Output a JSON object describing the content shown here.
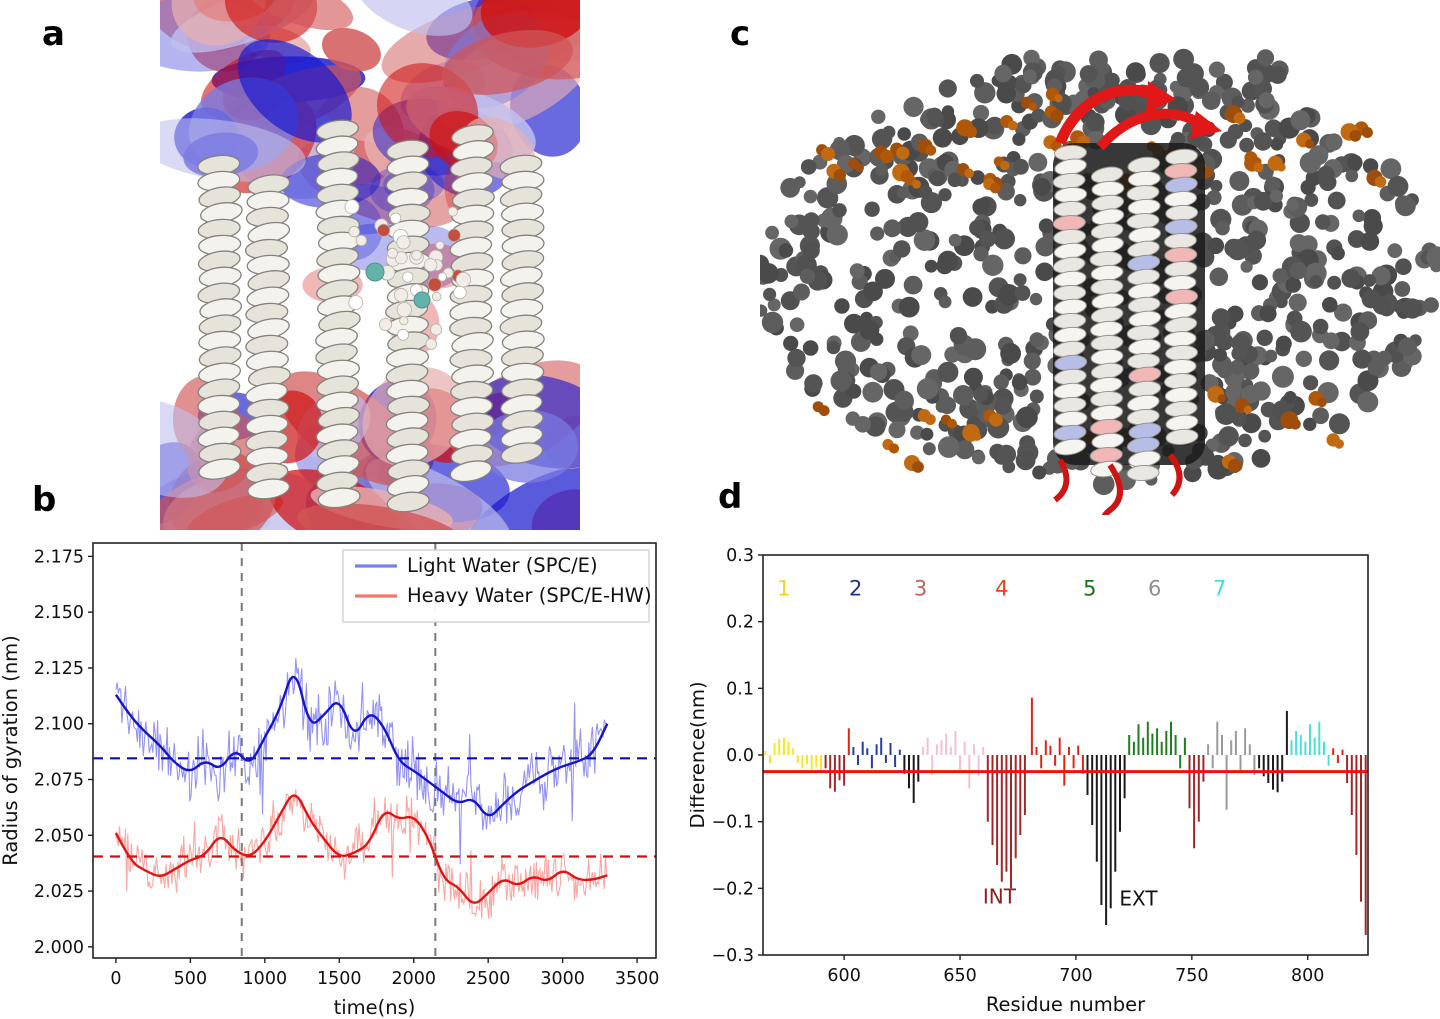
{
  "panels": {
    "a": {
      "label": "a",
      "type": "molecular-render",
      "colors": {
        "surface_blue": "#1b1bd0",
        "surface_red": "#cf1111",
        "helix_white": "#f2f0ea",
        "water_red": "#c24e3e",
        "ion_teal": "#63b3ab"
      }
    },
    "b": {
      "label": "b"
    },
    "c": {
      "label": "c",
      "type": "molecular-render",
      "colors": {
        "lipid_gray": "#565656",
        "headgroup_orange": "#b35d0e",
        "helix_white": "#f6f4f0",
        "loop_red": "#e01818",
        "tint_blue": "#b6bee8",
        "tint_pink": "#f1b6b6"
      }
    },
    "d": {
      "label": "d"
    }
  },
  "chart_data": [
    {
      "id": "b",
      "type": "line",
      "xlabel": "time(ns)",
      "ylabel": "Radius of gyration (nm)",
      "xlim": [
        -154,
        3627
      ],
      "ylim": [
        1.995,
        2.181
      ],
      "xtick_vals": [
        0,
        500,
        1000,
        1500,
        2000,
        2500,
        3000,
        3500
      ],
      "xtick_labels": [
        "0",
        "500",
        "1000",
        "1500",
        "2000",
        "2500",
        "3000",
        "3500"
      ],
      "ytick_vals": [
        2.0,
        2.025,
        2.05,
        2.075,
        2.1,
        2.125,
        2.15,
        2.175
      ],
      "ytick_labels": [
        "2.000",
        "2.025",
        "2.050",
        "2.075",
        "2.100",
        "2.125",
        "2.150",
        "2.175"
      ],
      "legend": [
        {
          "label": "Light Water (SPC/E)",
          "color": "#7d7df2"
        },
        {
          "label": "Heavy Water (SPC/E-HW)",
          "color": "#f0776d"
        }
      ],
      "hlines": [
        {
          "y": 2.0845,
          "color": "#0a0ac8"
        },
        {
          "y": 2.0405,
          "color": "#cc1111"
        }
      ],
      "vlines": [
        {
          "x": 845,
          "color": "#7a7a7a"
        },
        {
          "x": 2145,
          "color": "#7a7a7a"
        }
      ],
      "series": [
        {
          "name": "Light Water (SPC/E)",
          "smooth_color": "#1616c8",
          "band_color": "#7d7df2",
          "noise": 0.016,
          "seed": 11,
          "x": [
            0,
            100,
            200,
            300,
            400,
            500,
            600,
            700,
            800,
            900,
            1000,
            1100,
            1200,
            1300,
            1400,
            1500,
            1600,
            1700,
            1800,
            1900,
            2000,
            2100,
            2200,
            2300,
            2400,
            2500,
            2600,
            2700,
            2800,
            2900,
            3000,
            3100,
            3200,
            3300
          ],
          "y": [
            2.113,
            2.103,
            2.096,
            2.09,
            2.082,
            2.078,
            2.084,
            2.079,
            2.089,
            2.081,
            2.094,
            2.106,
            2.127,
            2.098,
            2.104,
            2.112,
            2.093,
            2.106,
            2.099,
            2.083,
            2.079,
            2.074,
            2.069,
            2.064,
            2.067,
            2.057,
            2.064,
            2.07,
            2.074,
            2.078,
            2.081,
            2.083,
            2.086,
            2.1
          ]
        },
        {
          "name": "Heavy Water (SPC/E-HW)",
          "smooth_color": "#e11414",
          "band_color": "#f9948c",
          "noise": 0.013,
          "seed": 97,
          "x": [
            0,
            100,
            200,
            300,
            400,
            500,
            600,
            700,
            800,
            900,
            1000,
            1100,
            1200,
            1300,
            1400,
            1500,
            1600,
            1700,
            1800,
            1900,
            2000,
            2100,
            2200,
            2300,
            2400,
            2500,
            2600,
            2700,
            2800,
            2900,
            3000,
            3100,
            3200,
            3300
          ],
          "y": [
            2.051,
            2.038,
            2.034,
            2.031,
            2.035,
            2.039,
            2.041,
            2.051,
            2.043,
            2.04,
            2.047,
            2.059,
            2.071,
            2.057,
            2.048,
            2.04,
            2.042,
            2.046,
            2.062,
            2.057,
            2.059,
            2.049,
            2.03,
            2.027,
            2.018,
            2.024,
            2.031,
            2.027,
            2.032,
            2.029,
            2.035,
            2.03,
            2.03,
            2.032
          ]
        }
      ]
    },
    {
      "id": "d",
      "type": "bar",
      "xlabel": "Residue number",
      "ylabel": "Difference(nm)",
      "xlim": [
        565,
        826
      ],
      "ylim": [
        -0.3,
        0.3
      ],
      "xtick_vals": [
        600,
        650,
        700,
        750,
        800
      ],
      "xtick_labels": [
        "600",
        "650",
        "700",
        "750",
        "800"
      ],
      "ytick_vals": [
        0.3,
        0.2,
        0.1,
        0.0,
        -0.1,
        -0.2,
        -0.3
      ],
      "ytick_labels": [
        "0.3",
        "0.2",
        "0.1",
        "0.0",
        "−0.1",
        "−0.2",
        "−0.3"
      ],
      "hline": {
        "y": -0.025,
        "color": "#e81414"
      },
      "palette": {
        "y": "#f6e628",
        "n": "#27409e",
        "p": "#f5c0ce",
        "r": "#e02418",
        "d": "#a02828",
        "k": "#1b1b1b",
        "g": "#1f7f1f",
        "e": "#9a9a9a",
        "c": "#4ae0da"
      },
      "segment_labels": [
        {
          "text": "1",
          "color": "#efd427",
          "x": 574,
          "y": 0.25
        },
        {
          "text": "2",
          "color": "#20357f",
          "x": 605,
          "y": 0.25
        },
        {
          "text": "3",
          "color": "#c2635c",
          "x": 633,
          "y": 0.25
        },
        {
          "text": "4",
          "color": "#e2441c",
          "x": 668,
          "y": 0.25
        },
        {
          "text": "5",
          "color": "#1d701d",
          "x": 706,
          "y": 0.25
        },
        {
          "text": "6",
          "color": "#8f8f8f",
          "x": 734,
          "y": 0.25
        },
        {
          "text": "7",
          "color": "#3fdede",
          "x": 762,
          "y": 0.25
        }
      ],
      "annotations": [
        {
          "text": "INT",
          "color": "#8b2020",
          "x": 667,
          "y": -0.212
        },
        {
          "text": "EXT",
          "color": "#111111",
          "x": 727,
          "y": -0.215
        }
      ],
      "bars": [
        [
          566,
          0.006,
          "y"
        ],
        [
          568,
          -0.012,
          "y"
        ],
        [
          570,
          0.018,
          "y"
        ],
        [
          572,
          0.024,
          "y"
        ],
        [
          574,
          0.026,
          "y"
        ],
        [
          576,
          0.02,
          "y"
        ],
        [
          578,
          0.01,
          "y"
        ],
        [
          580,
          -0.012,
          "y"
        ],
        [
          582,
          -0.02,
          "y"
        ],
        [
          584,
          -0.014,
          "y"
        ],
        [
          586,
          -0.022,
          "y"
        ],
        [
          588,
          -0.018,
          "y"
        ],
        [
          590,
          -0.024,
          "y"
        ],
        [
          592,
          -0.02,
          "d"
        ],
        [
          594,
          -0.05,
          "d"
        ],
        [
          596,
          -0.055,
          "d"
        ],
        [
          598,
          -0.038,
          "d"
        ],
        [
          600,
          -0.046,
          "d"
        ],
        [
          602,
          0.04,
          "r"
        ],
        [
          604,
          0.012,
          "n"
        ],
        [
          606,
          -0.015,
          "n"
        ],
        [
          608,
          0.02,
          "n"
        ],
        [
          610,
          0.01,
          "n"
        ],
        [
          612,
          -0.02,
          "n"
        ],
        [
          614,
          0.016,
          "n"
        ],
        [
          616,
          0.026,
          "n"
        ],
        [
          618,
          -0.012,
          "n"
        ],
        [
          620,
          0.018,
          "n"
        ],
        [
          622,
          -0.018,
          "n"
        ],
        [
          624,
          0.008,
          "n"
        ],
        [
          626,
          -0.028,
          "k"
        ],
        [
          628,
          -0.05,
          "k"
        ],
        [
          630,
          -0.072,
          "k"
        ],
        [
          632,
          -0.04,
          "k"
        ],
        [
          634,
          0.012,
          "p"
        ],
        [
          636,
          0.026,
          "p"
        ],
        [
          638,
          -0.03,
          "p"
        ],
        [
          640,
          0.016,
          "p"
        ],
        [
          642,
          0.022,
          "p"
        ],
        [
          644,
          0.032,
          "p"
        ],
        [
          646,
          0.012,
          "p"
        ],
        [
          648,
          0.036,
          "p"
        ],
        [
          650,
          -0.024,
          "p"
        ],
        [
          652,
          0.02,
          "p"
        ],
        [
          654,
          -0.05,
          "p"
        ],
        [
          656,
          0.016,
          "p"
        ],
        [
          658,
          -0.032,
          "p"
        ],
        [
          660,
          0.012,
          "p"
        ],
        [
          662,
          -0.1,
          "d"
        ],
        [
          664,
          -0.135,
          "d"
        ],
        [
          666,
          -0.165,
          "d"
        ],
        [
          668,
          -0.19,
          "d"
        ],
        [
          670,
          -0.175,
          "d"
        ],
        [
          672,
          -0.2,
          "d"
        ],
        [
          674,
          -0.155,
          "d"
        ],
        [
          676,
          -0.12,
          "d"
        ],
        [
          678,
          -0.09,
          "d"
        ],
        [
          681,
          0.086,
          "r"
        ],
        [
          683,
          0.012,
          "r"
        ],
        [
          685,
          -0.02,
          "r"
        ],
        [
          687,
          0.022,
          "r"
        ],
        [
          689,
          0.014,
          "r"
        ],
        [
          691,
          -0.016,
          "r"
        ],
        [
          693,
          0.026,
          "r"
        ],
        [
          695,
          -0.046,
          "r"
        ],
        [
          697,
          0.012,
          "r"
        ],
        [
          699,
          -0.02,
          "r"
        ],
        [
          701,
          0.014,
          "r"
        ],
        [
          703,
          -0.028,
          "r"
        ],
        [
          705,
          -0.06,
          "k"
        ],
        [
          707,
          -0.105,
          "k"
        ],
        [
          709,
          -0.16,
          "k"
        ],
        [
          711,
          -0.225,
          "k"
        ],
        [
          713,
          -0.255,
          "k"
        ],
        [
          715,
          -0.23,
          "k"
        ],
        [
          717,
          -0.175,
          "k"
        ],
        [
          719,
          -0.115,
          "k"
        ],
        [
          721,
          -0.065,
          "k"
        ],
        [
          723,
          0.03,
          "g"
        ],
        [
          725,
          0.02,
          "g"
        ],
        [
          727,
          0.046,
          "g"
        ],
        [
          729,
          0.026,
          "g"
        ],
        [
          731,
          0.05,
          "g"
        ],
        [
          733,
          0.032,
          "g"
        ],
        [
          735,
          0.04,
          "g"
        ],
        [
          737,
          0.02,
          "g"
        ],
        [
          739,
          0.036,
          "g"
        ],
        [
          741,
          0.05,
          "g"
        ],
        [
          743,
          0.03,
          "g"
        ],
        [
          745,
          -0.02,
          "g"
        ],
        [
          747,
          0.026,
          "g"
        ],
        [
          749,
          -0.08,
          "d"
        ],
        [
          751,
          -0.14,
          "d"
        ],
        [
          753,
          -0.1,
          "d"
        ],
        [
          755,
          -0.04,
          "d"
        ],
        [
          757,
          0.016,
          "e"
        ],
        [
          759,
          -0.02,
          "e"
        ],
        [
          761,
          0.05,
          "e"
        ],
        [
          763,
          0.03,
          "e"
        ],
        [
          765,
          -0.082,
          "e"
        ],
        [
          767,
          0.022,
          "e"
        ],
        [
          769,
          0.036,
          "e"
        ],
        [
          771,
          -0.026,
          "e"
        ],
        [
          773,
          0.04,
          "e"
        ],
        [
          775,
          0.016,
          "e"
        ],
        [
          777,
          -0.03,
          "e"
        ],
        [
          779,
          -0.02,
          "k"
        ],
        [
          781,
          -0.032,
          "k"
        ],
        [
          783,
          -0.042,
          "k"
        ],
        [
          785,
          -0.052,
          "k"
        ],
        [
          787,
          -0.056,
          "k"
        ],
        [
          789,
          -0.04,
          "k"
        ],
        [
          791,
          0.066,
          "k"
        ],
        [
          793,
          0.022,
          "c"
        ],
        [
          795,
          0.036,
          "c"
        ],
        [
          797,
          0.03,
          "c"
        ],
        [
          799,
          0.02,
          "c"
        ],
        [
          801,
          0.046,
          "c"
        ],
        [
          803,
          0.026,
          "c"
        ],
        [
          805,
          0.05,
          "c"
        ],
        [
          807,
          0.02,
          "c"
        ],
        [
          809,
          -0.016,
          "c"
        ],
        [
          811,
          0.01,
          "r"
        ],
        [
          813,
          -0.012,
          "r"
        ],
        [
          815,
          0.008,
          "r"
        ],
        [
          817,
          -0.042,
          "d"
        ],
        [
          819,
          -0.09,
          "d"
        ],
        [
          821,
          -0.15,
          "d"
        ],
        [
          823,
          -0.22,
          "d"
        ],
        [
          825,
          -0.27,
          "d"
        ]
      ]
    }
  ]
}
